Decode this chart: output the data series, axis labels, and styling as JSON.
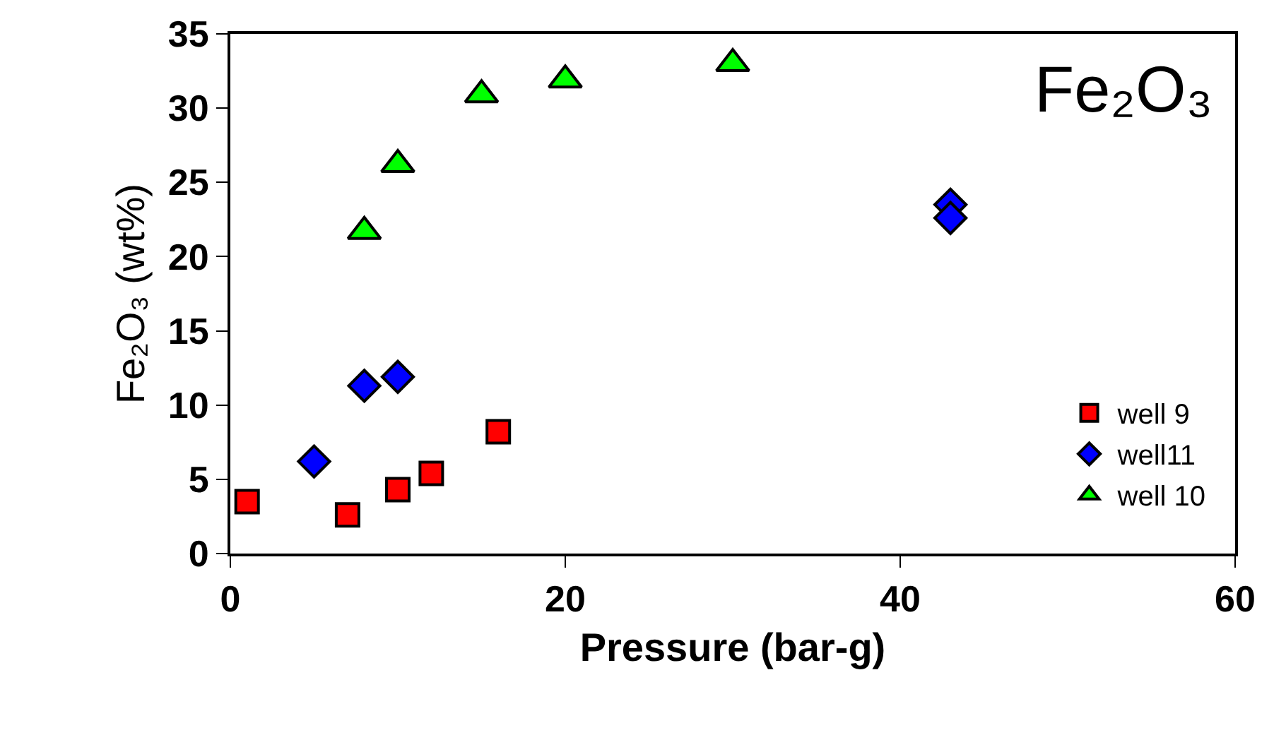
{
  "chart_data": {
    "type": "scatter",
    "xlabel": "Pressure (bar-g)",
    "ylabel": "Fe₂O₃ (wt%)",
    "annotations": [
      "Fe₂O₃"
    ],
    "xlim": [
      0,
      60
    ],
    "xticks": [
      0,
      20,
      40,
      60
    ],
    "ylim": [
      0,
      35
    ],
    "yticks": [
      0,
      5,
      10,
      15,
      20,
      25,
      30,
      35
    ],
    "legend": "bottom right",
    "series": [
      {
        "name": "well 9",
        "color": "#ff0000",
        "marker": "square",
        "x": [
          1,
          7,
          10,
          12,
          16
        ],
        "values": [
          3.5,
          2.6,
          4.3,
          5.4,
          8.2
        ]
      },
      {
        "name": "well11",
        "color": "#0000ff",
        "marker": "diamond",
        "x": [
          5,
          8,
          10,
          43,
          43
        ],
        "values": [
          6.2,
          11.3,
          11.9,
          23.5,
          22.6
        ]
      },
      {
        "name": "well 10",
        "color": "#00ff00",
        "marker": "triangle",
        "x": [
          8,
          10,
          15,
          20,
          30
        ],
        "values": [
          21.7,
          26.2,
          30.9,
          31.9,
          33.0
        ]
      }
    ]
  }
}
